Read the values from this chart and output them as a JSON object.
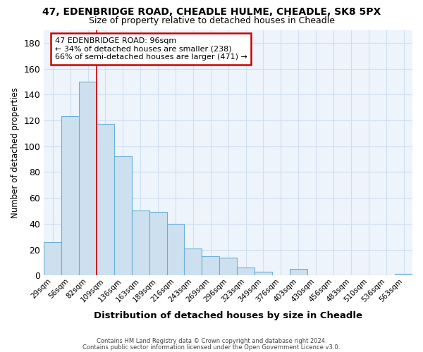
{
  "title1": "47, EDENBRIDGE ROAD, CHEADLE HULME, CHEADLE, SK8 5PX",
  "title2": "Size of property relative to detached houses in Cheadle",
  "xlabel": "Distribution of detached houses by size in Cheadle",
  "ylabel": "Number of detached properties",
  "bar_labels": [
    "29sqm",
    "56sqm",
    "82sqm",
    "109sqm",
    "136sqm",
    "163sqm",
    "189sqm",
    "216sqm",
    "243sqm",
    "269sqm",
    "296sqm",
    "323sqm",
    "349sqm",
    "376sqm",
    "403sqm",
    "430sqm",
    "456sqm",
    "483sqm",
    "510sqm",
    "536sqm",
    "563sqm"
  ],
  "bar_values": [
    26,
    123,
    150,
    117,
    92,
    50,
    49,
    40,
    21,
    15,
    14,
    6,
    3,
    0,
    5,
    0,
    0,
    0,
    0,
    0,
    1
  ],
  "bar_color": "#cde0f0",
  "bar_edge_color": "#6aafd6",
  "grid_color": "#d0dff0",
  "background_color": "#ffffff",
  "plot_bg_color": "#eef4fb",
  "red_line_x": 2.52,
  "annotation_text": "47 EDENBRIDGE ROAD: 96sqm\n← 34% of detached houses are smaller (238)\n66% of semi-detached houses are larger (471) →",
  "annotation_box_color": "#ffffff",
  "annotation_box_edge_color": "#cc0000",
  "footer1": "Contains HM Land Registry data © Crown copyright and database right 2024.",
  "footer2": "Contains public sector information licensed under the Open Government Licence v3.0.",
  "ylim": [
    0,
    190
  ],
  "yticks": [
    0,
    20,
    40,
    60,
    80,
    100,
    120,
    140,
    160,
    180
  ]
}
